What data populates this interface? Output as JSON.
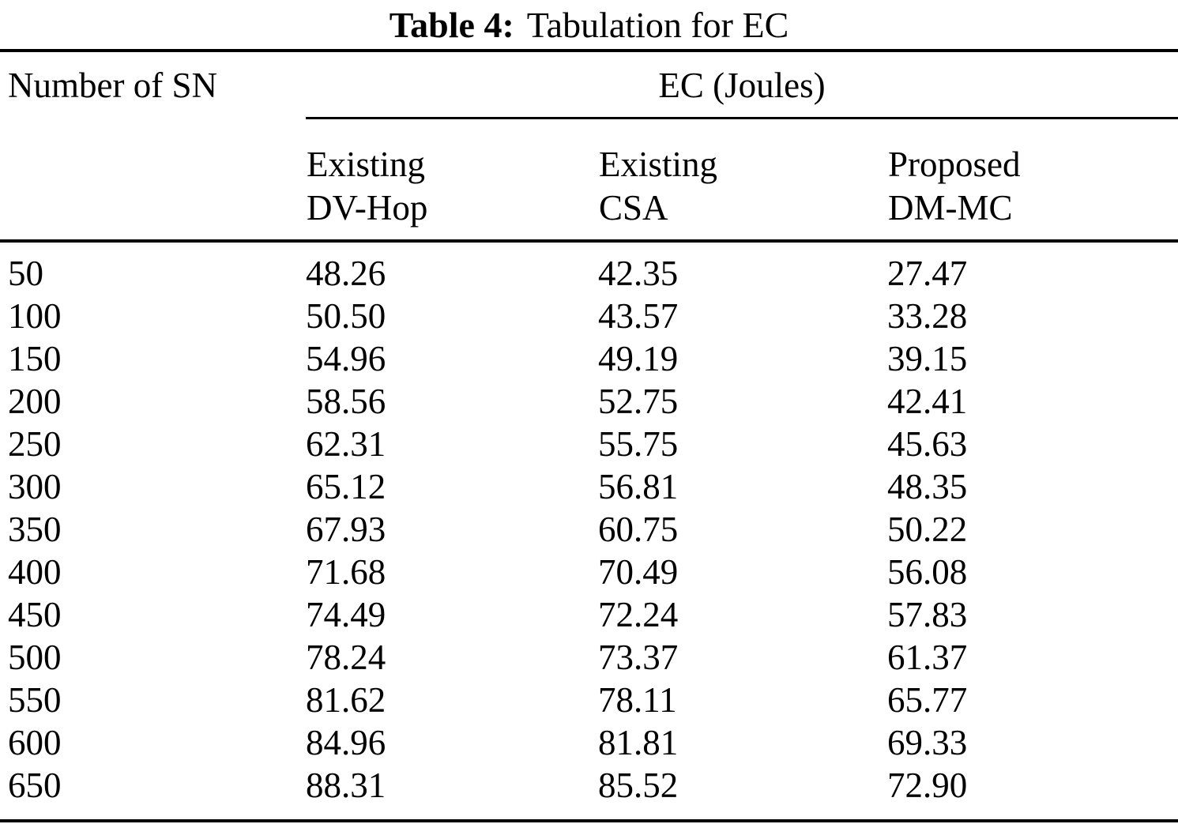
{
  "table": {
    "caption": {
      "label": "Table 4:",
      "text": "Tabulation for EC"
    },
    "row_header": "Number of SN",
    "group_header": "EC (Joules)",
    "columns": [
      {
        "line1": "Existing",
        "line2": "DV-Hop"
      },
      {
        "line1": "Existing",
        "line2": "CSA"
      },
      {
        "line1": "Proposed",
        "line2": "DM-MC"
      }
    ],
    "rows": [
      {
        "sn": "50",
        "values": [
          "48.26",
          "42.35",
          "27.47"
        ]
      },
      {
        "sn": "100",
        "values": [
          "50.50",
          "43.57",
          "33.28"
        ]
      },
      {
        "sn": "150",
        "values": [
          "54.96",
          "49.19",
          "39.15"
        ]
      },
      {
        "sn": "200",
        "values": [
          "58.56",
          "52.75",
          "42.41"
        ]
      },
      {
        "sn": "250",
        "values": [
          "62.31",
          "55.75",
          "45.63"
        ]
      },
      {
        "sn": "300",
        "values": [
          "65.12",
          "56.81",
          "48.35"
        ]
      },
      {
        "sn": "350",
        "values": [
          "67.93",
          "60.75",
          "50.22"
        ]
      },
      {
        "sn": "400",
        "values": [
          "71.68",
          "70.49",
          "56.08"
        ]
      },
      {
        "sn": "450",
        "values": [
          "74.49",
          "72.24",
          "57.83"
        ]
      },
      {
        "sn": "500",
        "values": [
          "78.24",
          "73.37",
          "61.37"
        ]
      },
      {
        "sn": "550",
        "values": [
          "81.62",
          "78.11",
          "65.77"
        ]
      },
      {
        "sn": "600",
        "values": [
          "84.96",
          "81.81",
          "69.33"
        ]
      },
      {
        "sn": "650",
        "values": [
          "88.31",
          "85.52",
          "72.90"
        ]
      }
    ],
    "colors": {
      "text": "#000000",
      "background": "#ffffff",
      "rule": "#000000"
    }
  },
  "chart_data": {
    "type": "table",
    "title": "Table 4: Tabulation for EC",
    "group_header": "EC (Joules)",
    "categories": [
      50,
      100,
      150,
      200,
      250,
      300,
      350,
      400,
      450,
      500,
      550,
      600,
      650
    ],
    "xlabel": "Number of SN",
    "ylabel": "EC (Joules)",
    "series": [
      {
        "name": "Existing DV-Hop",
        "values": [
          48.26,
          50.5,
          54.96,
          58.56,
          62.31,
          65.12,
          67.93,
          71.68,
          74.49,
          78.24,
          81.62,
          84.96,
          88.31
        ]
      },
      {
        "name": "Existing CSA",
        "values": [
          42.35,
          43.57,
          49.19,
          52.75,
          55.75,
          56.81,
          60.75,
          70.49,
          72.24,
          73.37,
          78.11,
          81.81,
          85.52
        ]
      },
      {
        "name": "Proposed DM-MC",
        "values": [
          27.47,
          33.28,
          39.15,
          42.41,
          45.63,
          48.35,
          50.22,
          56.08,
          57.83,
          61.37,
          65.77,
          69.33,
          72.9
        ]
      }
    ]
  }
}
